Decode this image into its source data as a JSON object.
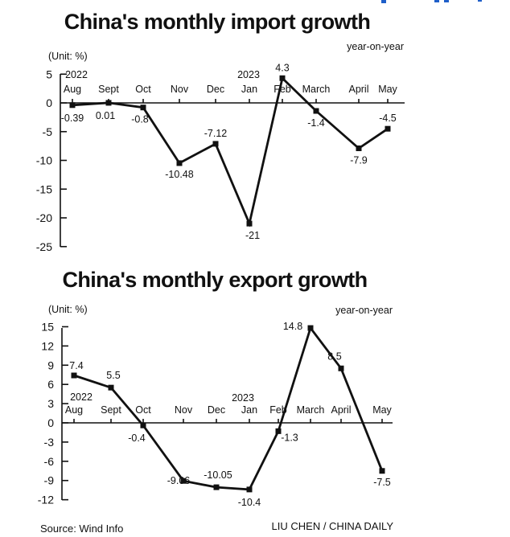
{
  "chart_data": [
    {
      "type": "line",
      "title": "China's monthly import growth",
      "unit_label": "(Unit: %)",
      "note": "year-on-year",
      "year_labels": [
        "2022",
        "2023"
      ],
      "categories": [
        "Aug",
        "Sept",
        "Oct",
        "Nov",
        "Dec",
        "Jan",
        "Feb",
        "March",
        "April",
        "May"
      ],
      "values": [
        -0.39,
        0.01,
        -0.8,
        -10.48,
        -7.12,
        -21,
        4.3,
        -1.4,
        -7.9,
        -4.5
      ],
      "value_labels": [
        "-0.39",
        "0.01",
        "-0.8",
        "-10.48",
        "-7.12",
        "-21",
        "4.3",
        "-1.4",
        "-7.9",
        "-4.5"
      ],
      "yticks": [
        5,
        0,
        -5,
        -10,
        -15,
        -20,
        -25
      ],
      "ylim": [
        -25,
        5
      ],
      "grid": false,
      "legend": "none"
    },
    {
      "type": "line",
      "title": "China's monthly export growth",
      "unit_label": "(Unit: %)",
      "note": "year-on-year",
      "year_labels": [
        "2022",
        "2023"
      ],
      "categories": [
        "Aug",
        "Sept",
        "Oct",
        "Nov",
        "Dec",
        "Jan",
        "Feb",
        "March",
        "April",
        "May"
      ],
      "values": [
        7.4,
        5.5,
        -0.4,
        -9.06,
        -10.05,
        -10.4,
        -1.3,
        14.8,
        8.5,
        -7.5
      ],
      "value_labels": [
        "7.4",
        "5.5",
        "-0.4",
        "-9.06",
        "-10.05",
        "-10.4",
        "-1.3",
        "14.8",
        "8.5",
        "-7.5"
      ],
      "yticks": [
        15,
        12,
        9,
        6,
        3,
        0,
        -3,
        -6,
        -9,
        -12
      ],
      "ylim": [
        -12,
        15
      ],
      "grid": false,
      "legend": "none"
    }
  ],
  "footer": {
    "source": "Source: Wind Info",
    "credit": "LIU CHEN / CHINA DAILY"
  },
  "colors": {
    "line": "#111111",
    "background": "#ffffff",
    "corner_accent": "#1f5fc9"
  }
}
